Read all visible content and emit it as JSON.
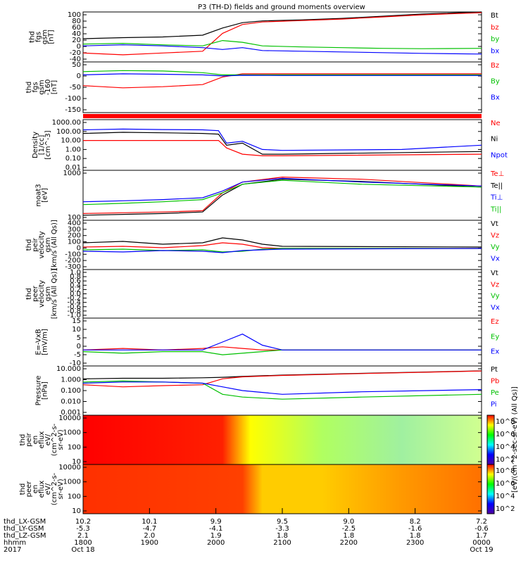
{
  "title": "P3 (TH-D) fields and ground moments overview",
  "chart_data": [
    {
      "type": "line",
      "ylabel": [
        "thd",
        "fgs",
        "gsm",
        "[nT]"
      ],
      "yticks": [
        "100",
        "80",
        "60",
        "40",
        "20",
        "0",
        "-20",
        "-40"
      ],
      "ylim": [
        -40,
        100
      ],
      "series": [
        {
          "name": "Bt",
          "color": "#000000",
          "x": [
            0,
            0.1,
            0.2,
            0.3,
            0.35,
            0.4,
            0.45,
            0.55,
            0.65,
            0.75,
            0.85,
            1.0
          ],
          "y": [
            25,
            28,
            30,
            35,
            55,
            70,
            75,
            78,
            82,
            88,
            94,
            100
          ]
        },
        {
          "name": "bz",
          "color": "#ff0000",
          "x": [
            0,
            0.1,
            0.2,
            0.3,
            0.35,
            0.4,
            0.45,
            0.55,
            0.65,
            0.75,
            0.85,
            1.0
          ],
          "y": [
            -15,
            -20,
            -15,
            -10,
            40,
            65,
            72,
            76,
            80,
            86,
            92,
            98
          ]
        },
        {
          "name": "by",
          "color": "#00c000",
          "x": [
            0,
            0.1,
            0.2,
            0.3,
            0.35,
            0.4,
            0.45,
            0.55,
            0.65,
            0.75,
            0.85,
            1.0
          ],
          "y": [
            10,
            12,
            8,
            5,
            20,
            15,
            5,
            2,
            0,
            -2,
            -3,
            -2
          ]
        },
        {
          "name": "bx",
          "color": "#0000ff",
          "x": [
            0,
            0.1,
            0.2,
            0.3,
            0.35,
            0.4,
            0.45,
            0.55,
            0.65,
            0.75,
            0.85,
            1.0
          ],
          "y": [
            5,
            8,
            5,
            0,
            -5,
            0,
            -8,
            -10,
            -12,
            -14,
            -16,
            -18
          ]
        }
      ]
    },
    {
      "type": "line",
      "ylabel": [
        "thd",
        "fgs",
        "gsm",
        "-160",
        "[nT]"
      ],
      "yticks": [
        "50",
        "0",
        "-50",
        "-100",
        "-150"
      ],
      "ylim": [
        -175,
        60
      ],
      "series": [
        {
          "name": "Bz",
          "color": "#ff0000",
          "x": [
            0,
            0.1,
            0.2,
            0.3,
            0.35,
            0.4,
            0.5,
            1.0
          ],
          "y": [
            -50,
            -60,
            -55,
            -45,
            -10,
            5,
            5,
            5
          ]
        },
        {
          "name": "By",
          "color": "#00c000",
          "x": [
            0,
            0.1,
            0.2,
            0.3,
            0.35,
            0.4,
            0.5,
            1.0
          ],
          "y": [
            15,
            20,
            18,
            10,
            0,
            0,
            0,
            0
          ]
        },
        {
          "name": "Bx",
          "color": "#0000ff",
          "x": [
            0,
            0.1,
            0.2,
            0.3,
            0.35,
            0.4,
            0.5,
            1.0
          ],
          "y": [
            0,
            5,
            3,
            0,
            -5,
            -2,
            -3,
            -3
          ]
        }
      ]
    },
    {
      "type": "line",
      "log": true,
      "ylabel": [
        "Density",
        "[1/cc]",
        "[cm^-3]"
      ],
      "yticks": [
        "1000.00",
        "100.00",
        "10.00",
        "1.00",
        "0.10",
        "0.01"
      ],
      "ylim": [
        0.005,
        2000
      ],
      "series": [
        {
          "name": "Ne",
          "color": "#ff0000",
          "x": [
            0,
            0.1,
            0.2,
            0.3,
            0.34,
            0.36,
            0.4,
            0.45,
            0.5,
            1.0
          ],
          "y": [
            10,
            10,
            10,
            10,
            10,
            1.5,
            0.3,
            0.2,
            0.2,
            0.3
          ]
        },
        {
          "name": "Ni",
          "color": "#000000",
          "x": [
            0,
            0.1,
            0.2,
            0.3,
            0.34,
            0.36,
            0.4,
            0.45,
            0.5,
            1.0
          ],
          "y": [
            60,
            80,
            70,
            60,
            50,
            3,
            5,
            0.3,
            0.3,
            0.6
          ]
        },
        {
          "name": "Npot",
          "color": "#0000ff",
          "x": [
            0,
            0.1,
            0.2,
            0.3,
            0.34,
            0.36,
            0.4,
            0.45,
            0.5,
            0.8,
            1.0
          ],
          "y": [
            150,
            180,
            160,
            150,
            120,
            5,
            8,
            1,
            0.8,
            1.0,
            3
          ]
        }
      ]
    },
    {
      "type": "line",
      "log": true,
      "ylabel": [
        "moat3",
        "[eV]"
      ],
      "yticks": [
        "1000",
        "100"
      ],
      "ylim": [
        30,
        5000
      ],
      "series": [
        {
          "name": "Te⊥",
          "color": "#ff0000",
          "x": [
            0,
            0.1,
            0.2,
            0.3,
            0.35,
            0.4,
            0.5,
            0.7,
            1.0
          ],
          "y": [
            60,
            65,
            70,
            80,
            500,
            1500,
            2500,
            2000,
            1000
          ]
        },
        {
          "name": "Te||",
          "color": "#000000",
          "x": [
            0,
            0.1,
            0.2,
            0.3,
            0.35,
            0.4,
            0.5,
            0.7,
            1.0
          ],
          "y": [
            50,
            55,
            60,
            70,
            400,
            1200,
            2000,
            1600,
            900
          ]
        },
        {
          "name": "Ti⊥",
          "color": "#0000ff",
          "x": [
            0,
            0.1,
            0.2,
            0.3,
            0.35,
            0.4,
            0.5,
            0.7,
            1.0
          ],
          "y": [
            200,
            220,
            250,
            300,
            600,
            1500,
            2200,
            1500,
            1000
          ]
        },
        {
          "name": "Ti||",
          "color": "#00c000",
          "x": [
            0,
            0.1,
            0.2,
            0.3,
            0.35,
            0.4,
            0.5,
            0.7,
            1.0
          ],
          "y": [
            150,
            170,
            200,
            250,
            500,
            1200,
            1800,
            1200,
            900
          ]
        }
      ]
    },
    {
      "type": "line",
      "ylabel": [
        "thd",
        "peir",
        "velocity",
        "gsm",
        "[km/s (All Qs)]"
      ],
      "yticks": [
        "400",
        "300",
        "200",
        "100",
        "0",
        "-100",
        "-200",
        "-300"
      ],
      "ylim": [
        -300,
        400
      ],
      "series": [
        {
          "name": "Vt",
          "color": "#000000",
          "x": [
            0,
            0.1,
            0.2,
            0.3,
            0.35,
            0.4,
            0.45,
            0.5,
            1.0
          ],
          "y": [
            80,
            100,
            60,
            80,
            150,
            120,
            60,
            30,
            20
          ]
        },
        {
          "name": "Vz",
          "color": "#ff0000",
          "x": [
            0,
            0.1,
            0.2,
            0.3,
            0.35,
            0.4,
            0.45,
            0.5,
            1.0
          ],
          "y": [
            20,
            30,
            10,
            40,
            80,
            60,
            10,
            0,
            0
          ]
        },
        {
          "name": "Vy",
          "color": "#00c000",
          "x": [
            0,
            0.1,
            0.2,
            0.3,
            0.35,
            0.4,
            0.45,
            0.5,
            1.0
          ],
          "y": [
            -20,
            -10,
            -30,
            -20,
            -50,
            -40,
            -10,
            0,
            0
          ]
        },
        {
          "name": "Vx",
          "color": "#0000ff",
          "x": [
            0,
            0.1,
            0.2,
            0.3,
            0.35,
            0.4,
            0.45,
            0.5,
            1.0
          ],
          "y": [
            -40,
            -50,
            -30,
            -40,
            -60,
            -30,
            -20,
            -10,
            0
          ]
        }
      ]
    },
    {
      "type": "line",
      "ylabel": [
        "thd",
        "peer",
        "velocity",
        "gsm",
        "[km/s (All Qs)]"
      ],
      "yticks": [
        "1.0",
        "0.8",
        "0.6",
        "0.4",
        "0.2",
        "0.0",
        "-0.2",
        "-0.4",
        "-0.6",
        "-0.8",
        "-1.0"
      ],
      "ylim": [
        -1,
        1
      ],
      "series": [
        {
          "name": "Vt",
          "color": "#000000",
          "x": [],
          "y": []
        },
        {
          "name": "Vz",
          "color": "#ff0000",
          "x": [],
          "y": []
        },
        {
          "name": "Vy",
          "color": "#00c000",
          "x": [],
          "y": []
        },
        {
          "name": "Vx",
          "color": "#0000ff",
          "x": [],
          "y": []
        }
      ]
    },
    {
      "type": "line",
      "ylabel": [
        "E=-VxB",
        "[mV/m]"
      ],
      "yticks": [
        "15",
        "10",
        "5",
        "0",
        "-5",
        "-10"
      ],
      "ylim": [
        -10,
        20
      ],
      "series": [
        {
          "name": "Ez",
          "color": "#ff0000",
          "x": [
            0,
            0.1,
            0.2,
            0.3,
            0.35,
            0.4,
            0.45,
            0.5,
            1.0
          ],
          "y": [
            0,
            1,
            0,
            1,
            2,
            1,
            0,
            0,
            0
          ]
        },
        {
          "name": "Ey",
          "color": "#00c000",
          "x": [
            0,
            0.1,
            0.2,
            0.3,
            0.35,
            0.4,
            0.45,
            0.5,
            1.0
          ],
          "y": [
            -1,
            -2,
            -1,
            -1,
            -3,
            -2,
            -1,
            0,
            0
          ]
        },
        {
          "name": "Ex",
          "color": "#0000ff",
          "x": [
            0,
            0.1,
            0.2,
            0.3,
            0.35,
            0.4,
            0.45,
            0.5,
            1.0
          ],
          "y": [
            0,
            0,
            0,
            0,
            5,
            10,
            3,
            0,
            0
          ]
        }
      ]
    },
    {
      "type": "line",
      "log": true,
      "ylabel": [
        "Pressure",
        "[nPa]"
      ],
      "yticks": [
        "10.000",
        "1.000",
        "0.100",
        "0.010",
        "0.001"
      ],
      "ylim": [
        0.001,
        10
      ],
      "series": [
        {
          "name": "Pt",
          "color": "#000000",
          "x": [
            0,
            0.1,
            0.2,
            0.3,
            0.35,
            0.4,
            0.5,
            0.7,
            1.0
          ],
          "y": [
            0.9,
            1.0,
            1.0,
            1.1,
            1.2,
            1.4,
            1.8,
            2.5,
            4
          ]
        },
        {
          "name": "Pb",
          "color": "#ff0000",
          "x": [
            0,
            0.1,
            0.2,
            0.3,
            0.35,
            0.4,
            0.5,
            0.7,
            1.0
          ],
          "y": [
            0.3,
            0.2,
            0.25,
            0.3,
            0.9,
            1.3,
            1.7,
            2.4,
            3.9
          ]
        },
        {
          "name": "Pe",
          "color": "#00c000",
          "x": [
            0,
            0.1,
            0.2,
            0.3,
            0.35,
            0.4,
            0.5,
            0.7,
            1.0
          ],
          "y": [
            0.5,
            0.6,
            0.5,
            0.4,
            0.05,
            0.03,
            0.02,
            0.03,
            0.05
          ]
        },
        {
          "name": "Pi",
          "color": "#0000ff",
          "x": [
            0,
            0.1,
            0.2,
            0.3,
            0.35,
            0.4,
            0.5,
            0.7,
            1.0
          ],
          "y": [
            0.4,
            0.5,
            0.5,
            0.4,
            0.2,
            0.1,
            0.05,
            0.08,
            0.12
          ]
        }
      ]
    },
    {
      "type": "heatmap",
      "ylabel": [
        "thd",
        "peir",
        "en",
        "eflux",
        "eV/",
        "(cm^2-s-",
        "sr-eV)"
      ],
      "yticks": [
        "10000",
        "1000",
        "100",
        "10"
      ],
      "colorbar_ticks": [
        "10^8",
        "10^6",
        "10^4",
        "10^2"
      ],
      "colorbar_label": "[eV/(cm^2-sec-sr-eV) (All Qs)]"
    },
    {
      "type": "heatmap",
      "ylabel": [
        "thd",
        "peer",
        "en",
        "eflux",
        "eV/",
        "(cm^2-s-",
        "sr-eV)"
      ],
      "yticks": [
        "10000",
        "1000",
        "100",
        "10"
      ],
      "colorbar_ticks": [
        "10^8",
        "10^6",
        "10^4",
        "10^2"
      ]
    }
  ],
  "legends": [
    [
      "Bt",
      "bz",
      "by",
      "bx"
    ],
    [
      "Bz",
      "By",
      "Bx"
    ],
    [
      "Ne",
      "Ni",
      "Npot"
    ],
    [
      "Te⊥",
      "Te||",
      "Ti⊥",
      "Ti||"
    ],
    [
      "Vt",
      "Vz",
      "Vy",
      "Vx"
    ],
    [
      "Vt",
      "Vz",
      "Vy",
      "Vx"
    ],
    [
      "Ez",
      "Ey",
      "Ex"
    ],
    [
      "Pt",
      "Pb",
      "Pe",
      "Pi"
    ]
  ],
  "legend_colors": [
    [
      "#000000",
      "#ff0000",
      "#00c000",
      "#0000ff"
    ],
    [
      "#ff0000",
      "#00c000",
      "#0000ff"
    ],
    [
      "#ff0000",
      "#000000",
      "#0000ff"
    ],
    [
      "#ff0000",
      "#000000",
      "#0000ff",
      "#00c000"
    ],
    [
      "#000000",
      "#ff0000",
      "#00c000",
      "#0000ff"
    ],
    [
      "#000000",
      "#ff0000",
      "#00c000",
      "#0000ff"
    ],
    [
      "#ff0000",
      "#00c000",
      "#0000ff"
    ],
    [
      "#000000",
      "#ff0000",
      "#00c000",
      "#0000ff"
    ]
  ],
  "xaxis": {
    "row_labels": [
      "thd_LX-GSM",
      "thd_LY-GSM",
      "thd_LZ-GSM",
      "hhmm",
      "2017"
    ],
    "columns": [
      [
        "10.2",
        "-5.3",
        "2.1",
        "1800",
        "Oct 18"
      ],
      [
        "10.1",
        "-4.7",
        "2.0",
        "1900",
        ""
      ],
      [
        "9.9",
        "-4.1",
        "1.9",
        "2000",
        ""
      ],
      [
        "9.5",
        "-3.3",
        "1.8",
        "2100",
        ""
      ],
      [
        "9.0",
        "-2.5",
        "1.8",
        "2200",
        ""
      ],
      [
        "8.2",
        "-1.6",
        "1.8",
        "2300",
        ""
      ],
      [
        "7.2",
        "-0.6",
        "1.7",
        "0000",
        "Oct 19"
      ]
    ]
  }
}
